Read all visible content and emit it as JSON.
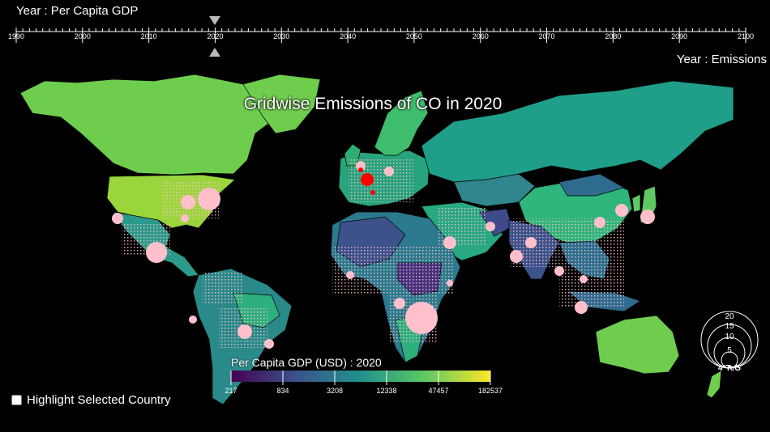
{
  "controls": {
    "gdp_year_label": "Year : Per Capita GDP",
    "emissions_year_label": "Year : Emissions",
    "highlight_label": "Highlight Selected Country"
  },
  "timeline": {
    "min": 1990,
    "max": 2100,
    "tick_labels": [
      "1990",
      "2000",
      "2010",
      "2020",
      "2030",
      "2040",
      "2050",
      "2060",
      "2070",
      "2080",
      "2090",
      "2100"
    ],
    "gdp_year": 2020,
    "emissions_year": 2020
  },
  "map": {
    "title": "Gridwise Emissions of CO in 2020",
    "background": "#000000",
    "emission_dot_color": "#ffc0cb",
    "selected_color": "#ff0000"
  },
  "legend": {
    "title": "Per Capita GDP (USD) : 2020",
    "tick_labels": [
      "217",
      "834",
      "3208",
      "12338",
      "47457",
      "182537"
    ],
    "colors": [
      "#440154",
      "#3b528b",
      "#21918c",
      "#5ec962",
      "#fde725"
    ]
  },
  "size_legend": {
    "values": [
      "20",
      "15",
      "10",
      "5"
    ],
    "unit": "4*TeG"
  }
}
